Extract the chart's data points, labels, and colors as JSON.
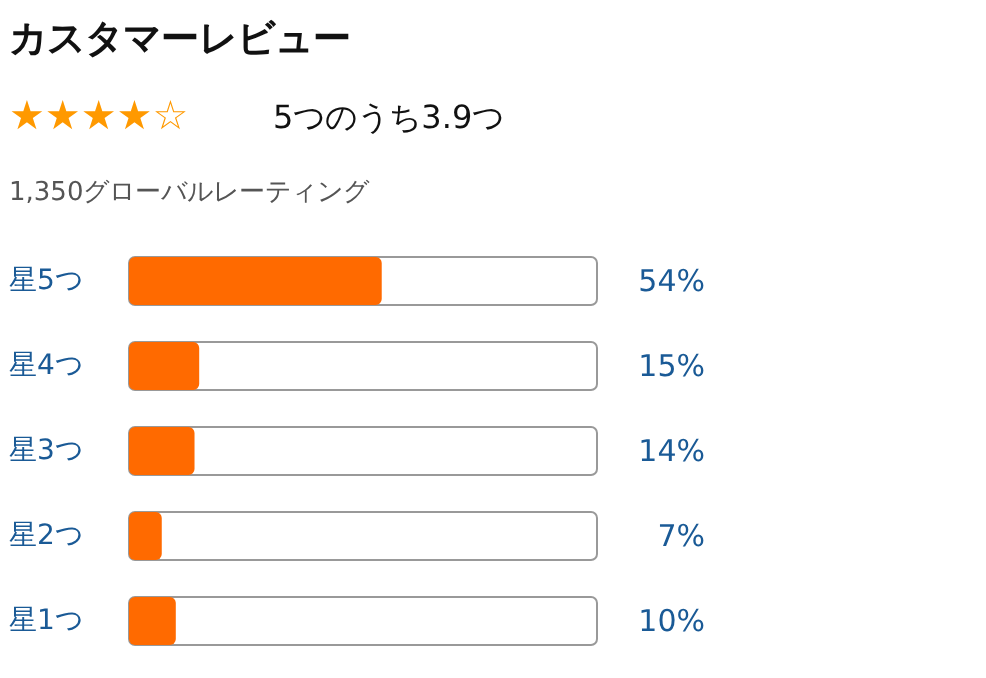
{
  "chart_data": {
    "type": "bar",
    "orientation": "horizontal",
    "title": "カスタマーレビュー",
    "subtitle": "5つのうち3.9つ",
    "annotations": [
      "★★★★☆",
      "1,350グローバルレーティング"
    ],
    "categories": [
      "星5つ",
      "星4つ",
      "星3つ",
      "星2つ",
      "星1つ"
    ],
    "values": [
      54,
      15,
      14,
      7,
      10
    ],
    "value_labels": [
      "54%",
      "15%",
      "14%",
      "7%",
      "10%"
    ],
    "color": "#ff6a00",
    "xlim": [
      0,
      100
    ],
    "grid": false
  }
}
